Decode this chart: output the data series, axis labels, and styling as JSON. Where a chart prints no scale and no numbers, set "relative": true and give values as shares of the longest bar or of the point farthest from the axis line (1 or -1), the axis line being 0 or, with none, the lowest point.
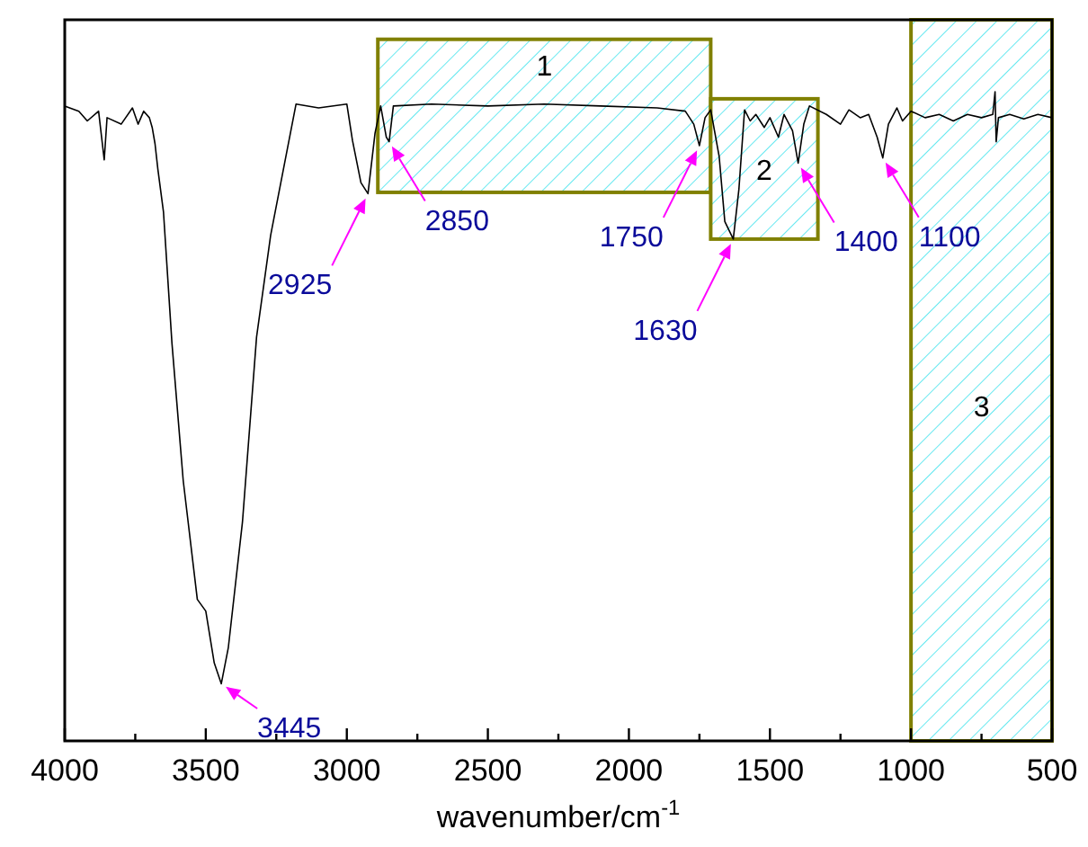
{
  "chart_data": {
    "type": "line",
    "relative": true,
    "xlabel": "wavenumber/cm$^{-1}$",
    "xlim": [
      4000,
      500
    ],
    "xticks": [
      4000,
      {
        "value": 3750,
        "label": null
      },
      3500,
      {
        "value": 3250,
        "label": null
      },
      3000,
      {
        "value": 2750,
        "label": null
      },
      2500,
      {
        "value": 2250,
        "label": null
      },
      2000,
      {
        "value": 1750,
        "label": null
      },
      1500,
      {
        "value": 1250,
        "label": null
      },
      1000,
      {
        "value": 750,
        "label": null
      },
      500
    ],
    "grid": false,
    "marker": "none",
    "line_style": "solid",
    "series": [
      {
        "color": "#000000",
        "x": [
          4000,
          3950,
          3920,
          3880,
          3860,
          3850,
          3800,
          3760,
          3740,
          3720,
          3700,
          3690,
          3680,
          3670,
          3650,
          3620,
          3580,
          3530,
          3500,
          3470,
          3445,
          3420,
          3370,
          3320,
          3270,
          3180,
          3100,
          3000,
          2980,
          2950,
          2925,
          2900,
          2880,
          2860,
          2850,
          2835,
          2700,
          2500,
          2300,
          2100,
          1900,
          1800,
          1770,
          1750,
          1730,
          1710,
          1680,
          1660,
          1630,
          1610,
          1590,
          1570,
          1550,
          1520,
          1500,
          1470,
          1450,
          1420,
          1400,
          1380,
          1360,
          1300,
          1250,
          1220,
          1180,
          1150,
          1120,
          1100,
          1080,
          1050,
          1030,
          1000,
          950,
          900,
          850,
          800,
          750,
          710,
          702,
          700,
          698,
          690,
          650,
          600,
          550,
          500
        ],
        "values": [
          0.978,
          0.97,
          0.955,
          0.97,
          0.895,
          0.96,
          0.95,
          0.975,
          0.95,
          0.97,
          0.96,
          0.945,
          0.92,
          0.881,
          0.815,
          0.613,
          0.401,
          0.218,
          0.2,
          0.12,
          0.088,
          0.144,
          0.337,
          0.622,
          0.779,
          0.981,
          0.975,
          0.981,
          0.925,
          0.86,
          0.843,
          0.936,
          0.978,
          0.93,
          0.923,
          0.978,
          0.981,
          0.978,
          0.981,
          0.978,
          0.975,
          0.97,
          0.95,
          0.917,
          0.96,
          0.972,
          0.9,
          0.8,
          0.773,
          0.85,
          0.972,
          0.955,
          0.965,
          0.945,
          0.96,
          0.93,
          0.965,
          0.94,
          0.89,
          0.95,
          0.978,
          0.965,
          0.95,
          0.972,
          0.96,
          0.965,
          0.93,
          0.898,
          0.95,
          0.975,
          0.955,
          0.97,
          0.96,
          0.965,
          0.955,
          0.965,
          0.96,
          0.965,
          1.0,
          0.96,
          0.923,
          0.96,
          0.965,
          0.958,
          0.965,
          0.96
        ]
      }
    ],
    "bands": [
      {
        "axis": "x",
        "from": 2890,
        "to": 1710,
        "label": "1",
        "color": "#808000"
      },
      {
        "axis": "x",
        "from": 1710,
        "to": 1330,
        "label": "2",
        "color": "#808000"
      },
      {
        "axis": "x",
        "from": 1000,
        "to": 500,
        "label": "3",
        "color": "#808000"
      }
    ],
    "annotations": [
      {
        "text": "3445",
        "x": 3445,
        "y": 0.088
      },
      {
        "text": "2925",
        "x": 2925,
        "y": 0.843
      },
      {
        "text": "2850",
        "x": 2850,
        "y": 0.923
      },
      {
        "text": "1750",
        "x": 1750,
        "y": 0.917
      },
      {
        "text": "1100",
        "x": 1100,
        "y": 0.898
      },
      {
        "text": "1630",
        "x": 1630,
        "y": 0.773
      },
      {
        "text": "1400",
        "x": 1400,
        "y": 0.89
      }
    ]
  }
}
